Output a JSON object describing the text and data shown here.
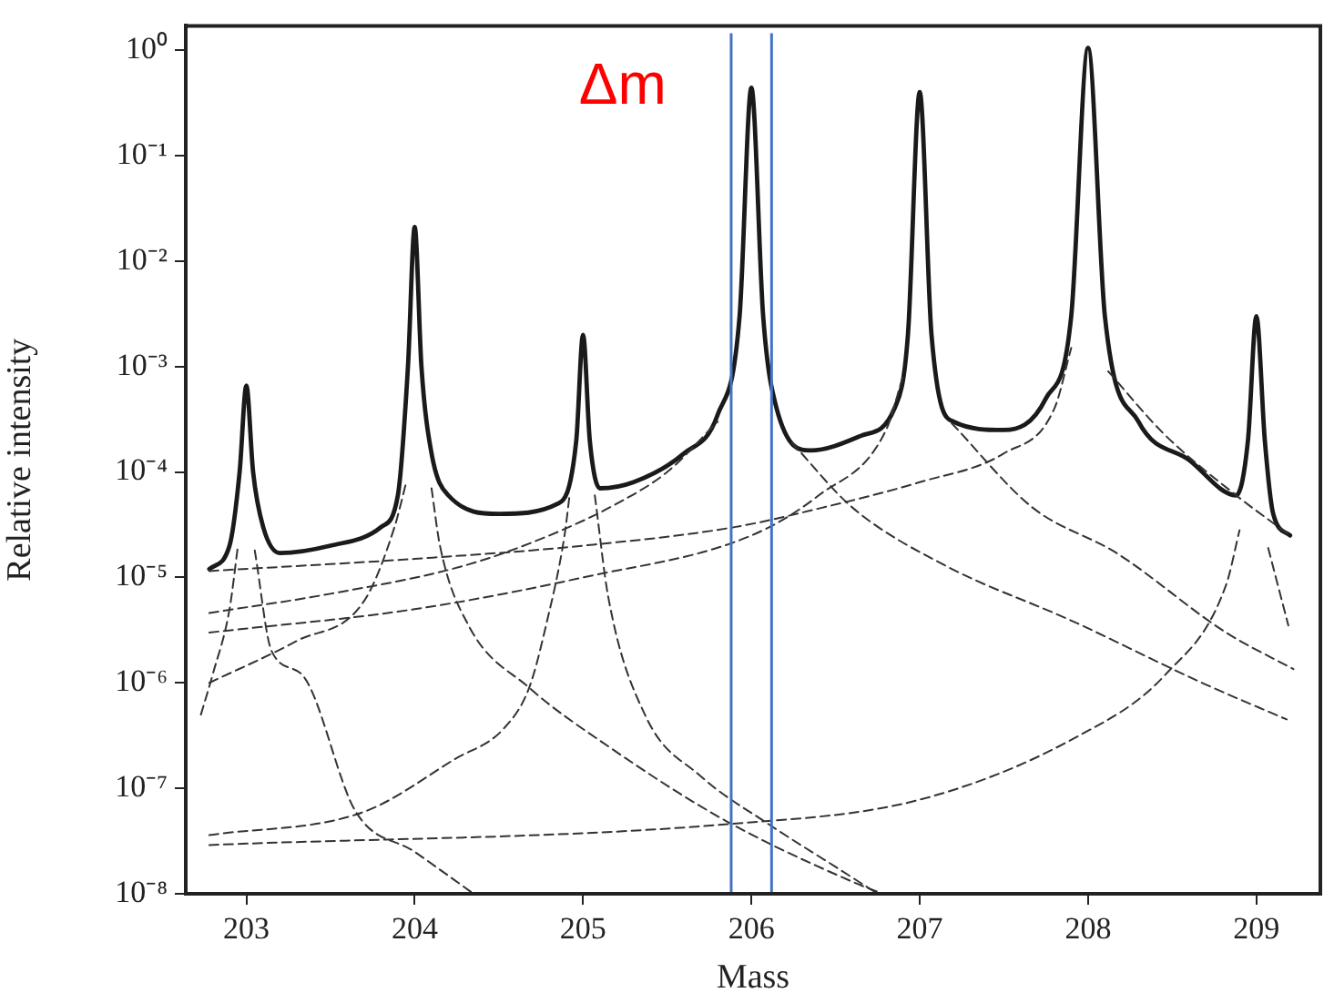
{
  "chart_data": {
    "type": "line",
    "xlabel": "Mass",
    "ylabel": "Relative intensity",
    "log": "y",
    "grid": false,
    "legend": false,
    "marker": "none",
    "xlim": [
      202.64,
      209.38
    ],
    "xticks": [
      203,
      204,
      205,
      206,
      207,
      208,
      209
    ],
    "ylim": [
      1e-08,
      1.7
    ],
    "yticks": [
      {
        "value": 1,
        "label": "10⁰"
      },
      {
        "value": 0.1,
        "label": "10⁻¹"
      },
      {
        "value": 0.01,
        "label": "10⁻²"
      },
      {
        "value": 0.001,
        "label": "10⁻³"
      },
      {
        "value": 0.0001,
        "label": "10⁻⁴"
      },
      {
        "value": 1e-05,
        "label": "10⁻⁵"
      },
      {
        "value": 1e-06,
        "label": "10⁻⁶"
      },
      {
        "value": 1e-07,
        "label": "10⁻⁷"
      },
      {
        "value": 1e-08,
        "label": "10⁻⁸"
      }
    ],
    "ref_lines": [
      {
        "axis": "x",
        "value": 205.88,
        "color": "#4472c4"
      },
      {
        "axis": "x",
        "value": 206.12,
        "color": "#4472c4"
      }
    ],
    "annotations": [
      "Δm"
    ],
    "series": [
      {
        "type": "line",
        "line_style": "dashed",
        "color": "#333333",
        "x": [
          202.73,
          202.8,
          202.9,
          202.95
        ],
        "values": [
          5e-07,
          1.2e-06,
          5e-06,
          2e-05
        ]
      },
      {
        "type": "line",
        "line_style": "dashed",
        "color": "#333333",
        "x": [
          203.05,
          203.15,
          203.33,
          203.65,
          204,
          204.35
        ],
        "values": [
          1.8e-05,
          2e-06,
          1.2e-06,
          6e-08,
          2.5e-08,
          1e-08
        ]
      },
      {
        "type": "line",
        "line_style": "dashed",
        "color": "#333333",
        "x": [
          202.78,
          203.3,
          203.7,
          203.88,
          203.95
        ],
        "values": [
          1e-06,
          2.5e-06,
          6e-06,
          3e-05,
          8e-05
        ]
      },
      {
        "type": "line",
        "line_style": "dashed",
        "color": "#333333",
        "x": [
          204.1,
          204.15,
          204.32,
          204.68,
          205.15,
          205.84,
          206.6,
          206.78
        ],
        "values": [
          7e-05,
          2e-05,
          3.5e-06,
          9e-07,
          2.5e-07,
          5e-08,
          1.3e-08,
          1e-08
        ]
      },
      {
        "type": "line",
        "line_style": "dashed",
        "color": "#333333",
        "x": [
          202.78,
          203.7,
          204.24,
          204.53,
          204.68,
          204.78,
          204.89,
          204.92
        ],
        "values": [
          3.6e-08,
          6e-08,
          1.9e-07,
          3.7e-07,
          9e-07,
          3.5e-06,
          2.5e-05,
          6e-05
        ]
      },
      {
        "type": "line",
        "line_style": "dashed",
        "color": "#333333",
        "x": [
          205.07,
          205.15,
          205.37,
          205.7,
          206.1,
          206.5,
          206.75
        ],
        "values": [
          6e-05,
          6.5e-06,
          4.9e-07,
          1.3e-07,
          4.6e-08,
          1.8e-08,
          1e-08
        ]
      },
      {
        "type": "line",
        "line_style": "dashed",
        "color": "#333333",
        "x": [
          202.78,
          203.5,
          204.3,
          204.8,
          205.2,
          205.5,
          205.8
        ],
        "values": [
          4.6e-06,
          7e-06,
          1.3e-05,
          2.5e-05,
          5e-05,
          0.0001,
          0.0003
        ]
      },
      {
        "type": "line",
        "line_style": "dashed",
        "color": "#333333",
        "x": [
          206.24,
          206.6,
          207.15,
          207.9,
          208.69,
          209.18
        ],
        "values": [
          0.00019,
          4.6e-05,
          1.3e-05,
          3.9e-06,
          9.8e-07,
          4.5e-07
        ]
      },
      {
        "type": "line",
        "line_style": "dashed",
        "color": "#333333",
        "x": [
          202.78,
          204,
          205,
          206,
          206.4,
          206.8,
          206.9
        ],
        "values": [
          3e-06,
          5e-06,
          1e-05,
          2.5e-05,
          6e-05,
          0.00025,
          0.0008
        ]
      },
      {
        "type": "line",
        "line_style": "dashed",
        "color": "#333333",
        "x": [
          207.19,
          207.67,
          208.17,
          208.82,
          209.22
        ],
        "values": [
          0.00029,
          4.6e-05,
          1.7e-05,
          3e-06,
          1.35e-06
        ]
      },
      {
        "type": "line",
        "line_style": "dashed",
        "color": "#333333",
        "x": [
          202.78,
          204,
          205,
          205.9,
          206.4,
          207,
          207.5,
          207.8,
          207.9
        ],
        "values": [
          1.15e-05,
          1.5e-05,
          2e-05,
          3e-05,
          4.5e-05,
          8e-05,
          0.00015,
          0.0004,
          0.0015
        ]
      },
      {
        "type": "line",
        "line_style": "dashed",
        "color": "#333333",
        "x": [
          208.12,
          208.45,
          208.88,
          209.2
        ],
        "values": [
          0.0009,
          0.00023,
          6e-05,
          2.5e-05
        ]
      },
      {
        "type": "line",
        "line_style": "dashed",
        "color": "#333333",
        "x": [
          202.78,
          205.88,
          207,
          207.92,
          208.46,
          208.82,
          208.9
        ],
        "values": [
          2.9e-08,
          4.6e-08,
          7.8e-08,
          3e-07,
          1.2e-06,
          8.5e-06,
          2.8e-05
        ]
      },
      {
        "type": "line",
        "line_style": "dashed",
        "color": "#333333",
        "x": [
          209.07,
          209.19
        ],
        "values": [
          1.9e-05,
          3.5e-06
        ]
      },
      {
        "type": "line",
        "line_style": "solid",
        "color": "#1a1a1a",
        "x": [
          202.78,
          202.9,
          202.96,
          203,
          203.04,
          203.1,
          203.2,
          203.5,
          203.8,
          203.9,
          203.96,
          204,
          204.04,
          204.1,
          204.2,
          204.5,
          204.85,
          204.96,
          205,
          205.04,
          205.1,
          205.3,
          205.6,
          205.8,
          205.93,
          206,
          206.07,
          206.15,
          206.35,
          206.65,
          206.85,
          206.93,
          207,
          207.07,
          207.2,
          207.5,
          207.75,
          207.9,
          208,
          208.1,
          208.3,
          208.6,
          208.88,
          208.95,
          209,
          209.05,
          209.1,
          209.2
        ],
        "values": [
          1.2e-05,
          2e-05,
          0.0001,
          0.00066,
          0.0001,
          3e-05,
          1.7e-05,
          2e-05,
          3e-05,
          6e-05,
          0.001,
          0.021,
          0.001,
          0.00015,
          6e-05,
          4e-05,
          5e-05,
          0.0002,
          0.002,
          0.0002,
          7e-05,
          8e-05,
          0.00015,
          0.00035,
          0.003,
          0.44,
          0.003,
          0.0004,
          0.00016,
          0.00022,
          0.0004,
          0.002,
          0.4,
          0.002,
          0.0003,
          0.00025,
          0.0005,
          0.003,
          1.05,
          0.003,
          0.0003,
          0.00013,
          6e-05,
          0.0002,
          0.003,
          0.0002,
          4e-05,
          2.5e-05
        ]
      }
    ]
  }
}
